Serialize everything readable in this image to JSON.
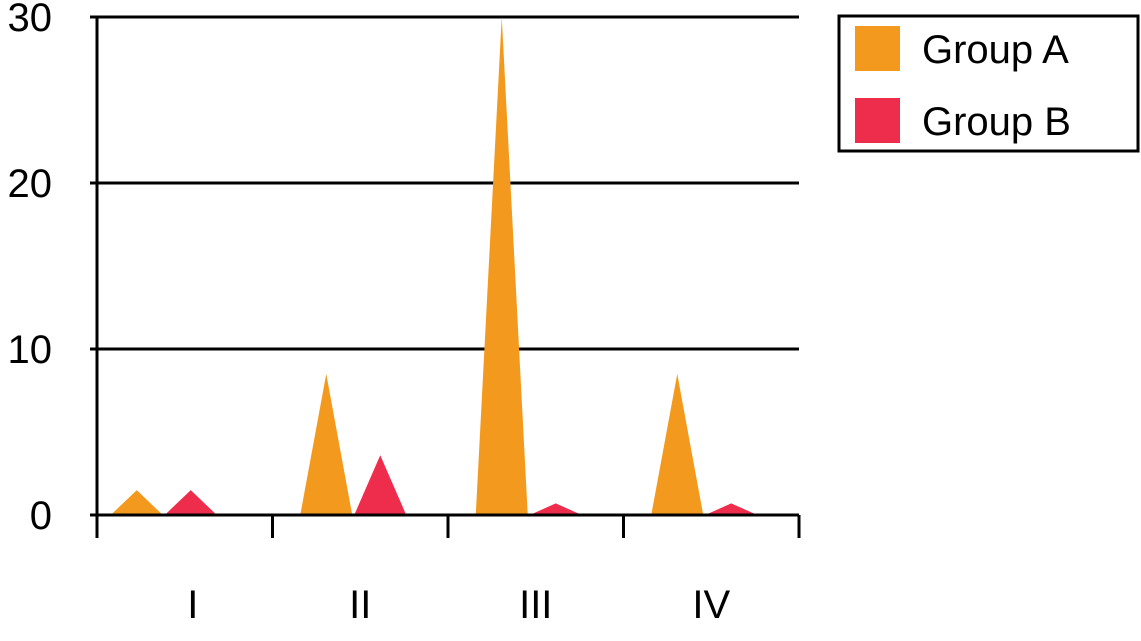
{
  "chart_data": {
    "type": "bar",
    "bar_shape": "triangle",
    "categories": [
      "I",
      "II",
      "III",
      "IV"
    ],
    "series": [
      {
        "name": "Group A",
        "color": "#F39A1E",
        "values": [
          1.5,
          8.5,
          30,
          8.5
        ]
      },
      {
        "name": "Group B",
        "color": "#EE2C4B",
        "values": [
          1.5,
          3.6,
          0.7,
          0.7
        ]
      }
    ],
    "ylim": [
      0,
      30
    ],
    "yticks": [
      0,
      10,
      20,
      30
    ],
    "grid": true,
    "legend_position": "top-right",
    "title": "",
    "xlabel": "",
    "ylabel": ""
  }
}
